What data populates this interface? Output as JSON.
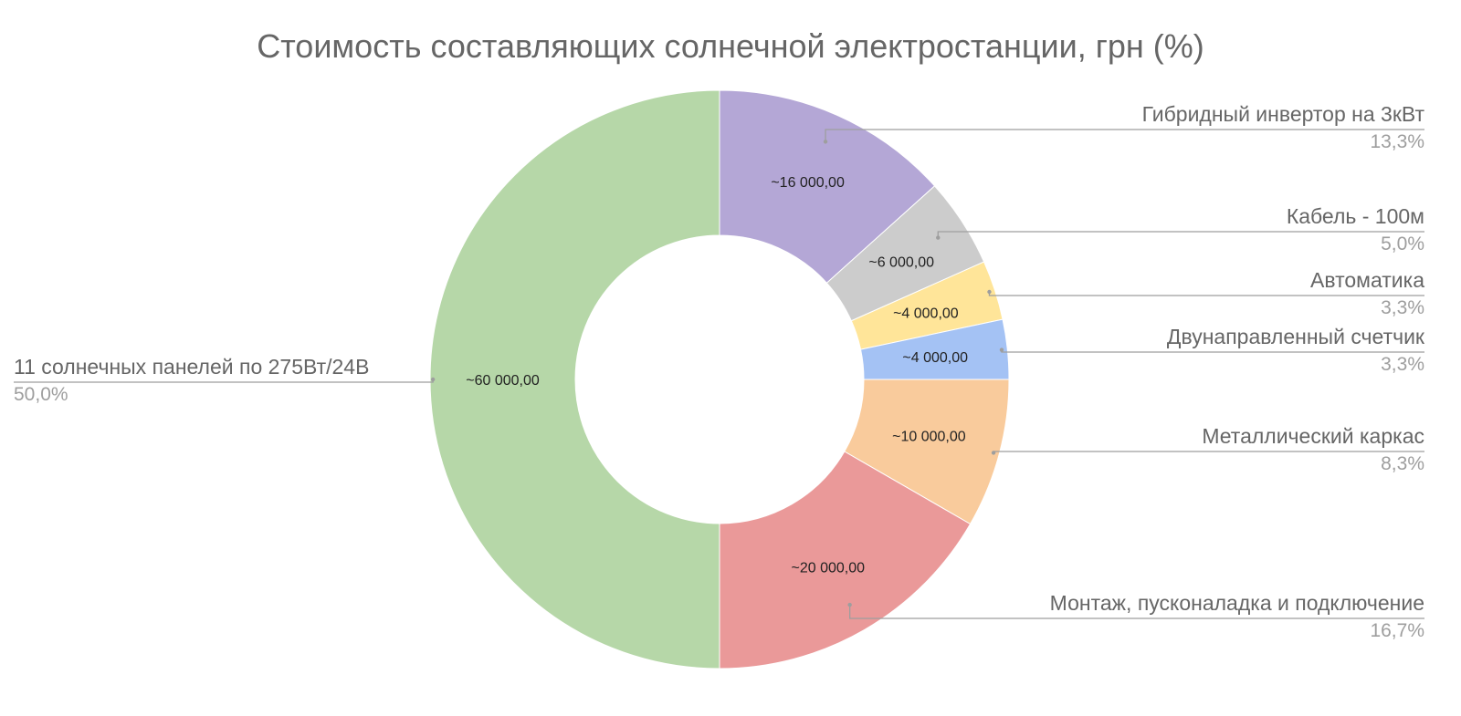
{
  "chart_data": {
    "type": "pie",
    "title": "Стоимость составляющих солнечной электростанции, грн (%)",
    "donut": true,
    "slices": [
      {
        "name": "Гибридный инвертор на 3кВт",
        "value": 16000,
        "label": "~16 000,00",
        "percent": "13,3%",
        "color": "#b4a7d6"
      },
      {
        "name": "Кабель - 100м",
        "value": 6000,
        "label": "~6 000,00",
        "percent": "5,0%",
        "color": "#cccccc"
      },
      {
        "name": "Автоматика",
        "value": 4000,
        "label": "~4 000,00",
        "percent": "3,3%",
        "color": "#ffe599"
      },
      {
        "name": "Двунаправленный счетчик",
        "value": 4000,
        "label": "~4 000,00",
        "percent": "3,3%",
        "color": "#a4c2f4"
      },
      {
        "name": "Металлический каркас",
        "value": 10000,
        "label": "~10 000,00",
        "percent": "8,3%",
        "color": "#f9cb9c"
      },
      {
        "name": "Монтаж, пусконаладка и подключение",
        "value": 20000,
        "label": "~20 000,00",
        "percent": "16,7%",
        "color": "#ea9999"
      },
      {
        "name": "11 солнечных панелей по 275Вт/24В",
        "value": 60000,
        "label": "~60 000,00",
        "percent": "50,0%",
        "color": "#b6d7a8"
      }
    ]
  }
}
